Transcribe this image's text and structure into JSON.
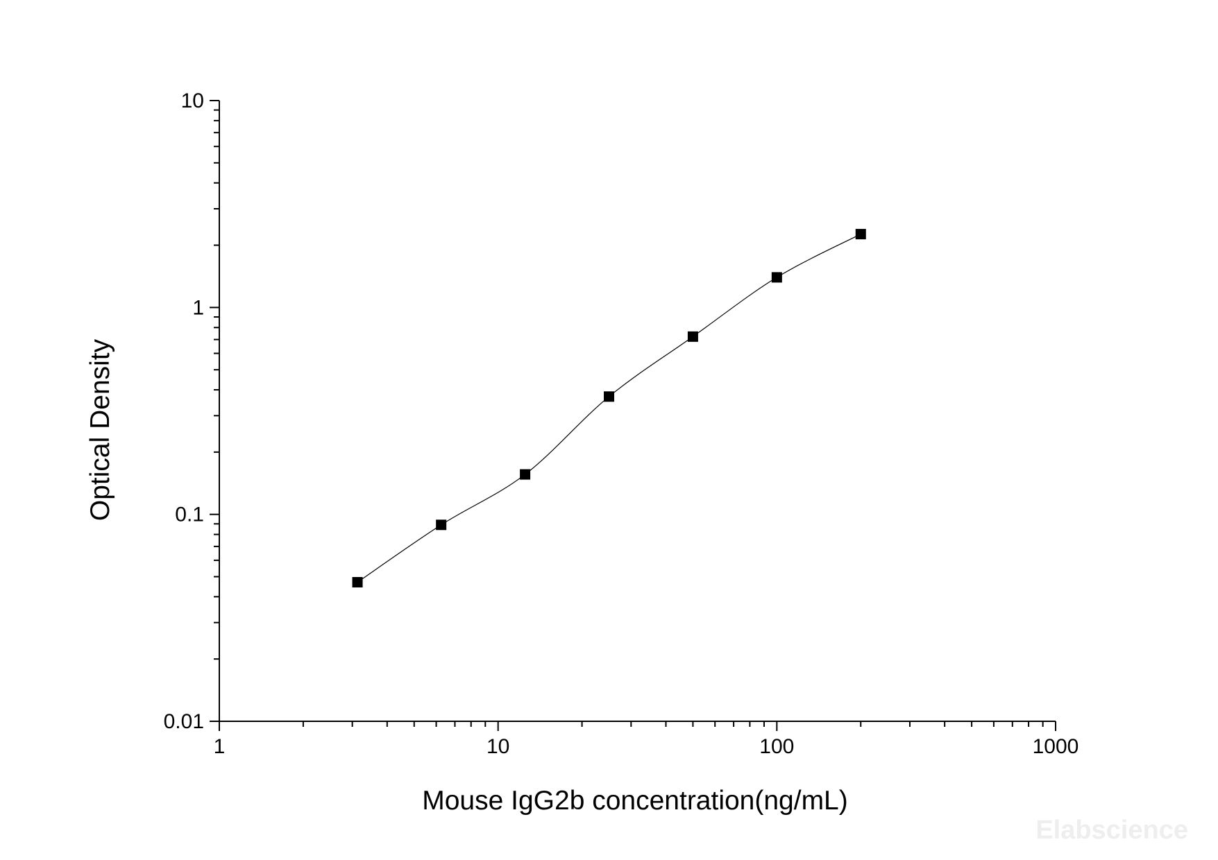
{
  "chart_data": {
    "type": "scatter",
    "title": "",
    "xlabel": "Mouse IgG2b concentration(ng/mL)",
    "ylabel": "Optical Density",
    "x_scale": "log",
    "y_scale": "log",
    "xlim": [
      1,
      1000
    ],
    "ylim": [
      0.01,
      10
    ],
    "x_ticks": [
      "1",
      "10",
      "100",
      "1000"
    ],
    "y_ticks": [
      "10",
      "1",
      "0.1",
      "0.01"
    ],
    "grid": false,
    "legend": "none",
    "series": [
      {
        "x": [
          3.13,
          6.25,
          12.5,
          25,
          50,
          100,
          200
        ],
        "y": [
          0.047,
          0.089,
          0.156,
          0.371,
          0.723,
          1.398,
          2.262
        ],
        "marker": "square",
        "fit_line": "smooth"
      }
    ],
    "colors": {
      "marker": "#000000",
      "line": "#000000",
      "axis": "#000000"
    },
    "watermark": "Elabscience"
  }
}
